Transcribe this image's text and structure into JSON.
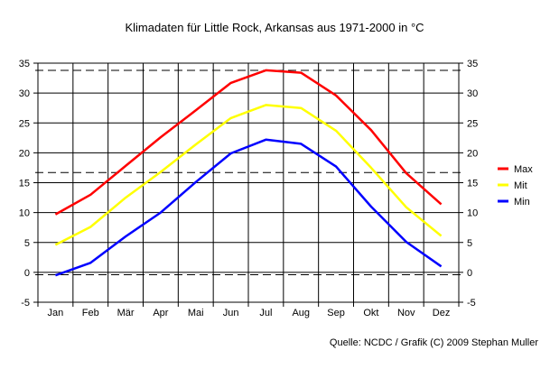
{
  "chart_data": {
    "type": "line",
    "title": "Klimadaten für Little Rock, Arkansas aus 1971-2000 in °C",
    "source": "Quelle: NCDC / Grafik (C) 2009 Stephan Muller",
    "categories": [
      "Jan",
      "Feb",
      "Mär",
      "Apr",
      "Mai",
      "Jun",
      "Jul",
      "Aug",
      "Sep",
      "Okt",
      "Nov",
      "Dez"
    ],
    "ylim": [
      -5,
      35
    ],
    "yticks": [
      "35",
      "30",
      "25",
      "20",
      "15",
      "10",
      "5",
      "0",
      "-5"
    ],
    "grid": true,
    "dashed_lines": [
      33.8,
      16.7,
      -0.4
    ],
    "legend_position": "right",
    "series": [
      {
        "name": "Max",
        "color": "#ff0000",
        "values": [
          9.7,
          13.0,
          17.8,
          22.6,
          27.1,
          31.7,
          33.8,
          33.4,
          29.6,
          23.8,
          16.6,
          11.4
        ]
      },
      {
        "name": "Mit",
        "color": "#ffff00",
        "values": [
          4.6,
          7.6,
          12.5,
          16.8,
          21.4,
          25.8,
          28.0,
          27.5,
          23.7,
          17.5,
          10.9,
          6.1
        ]
      },
      {
        "name": "Min",
        "color": "#0000ff",
        "values": [
          -0.5,
          1.6,
          6.0,
          10.0,
          15.1,
          19.9,
          22.2,
          21.5,
          17.7,
          11.0,
          5.1,
          1.0
        ]
      }
    ]
  }
}
